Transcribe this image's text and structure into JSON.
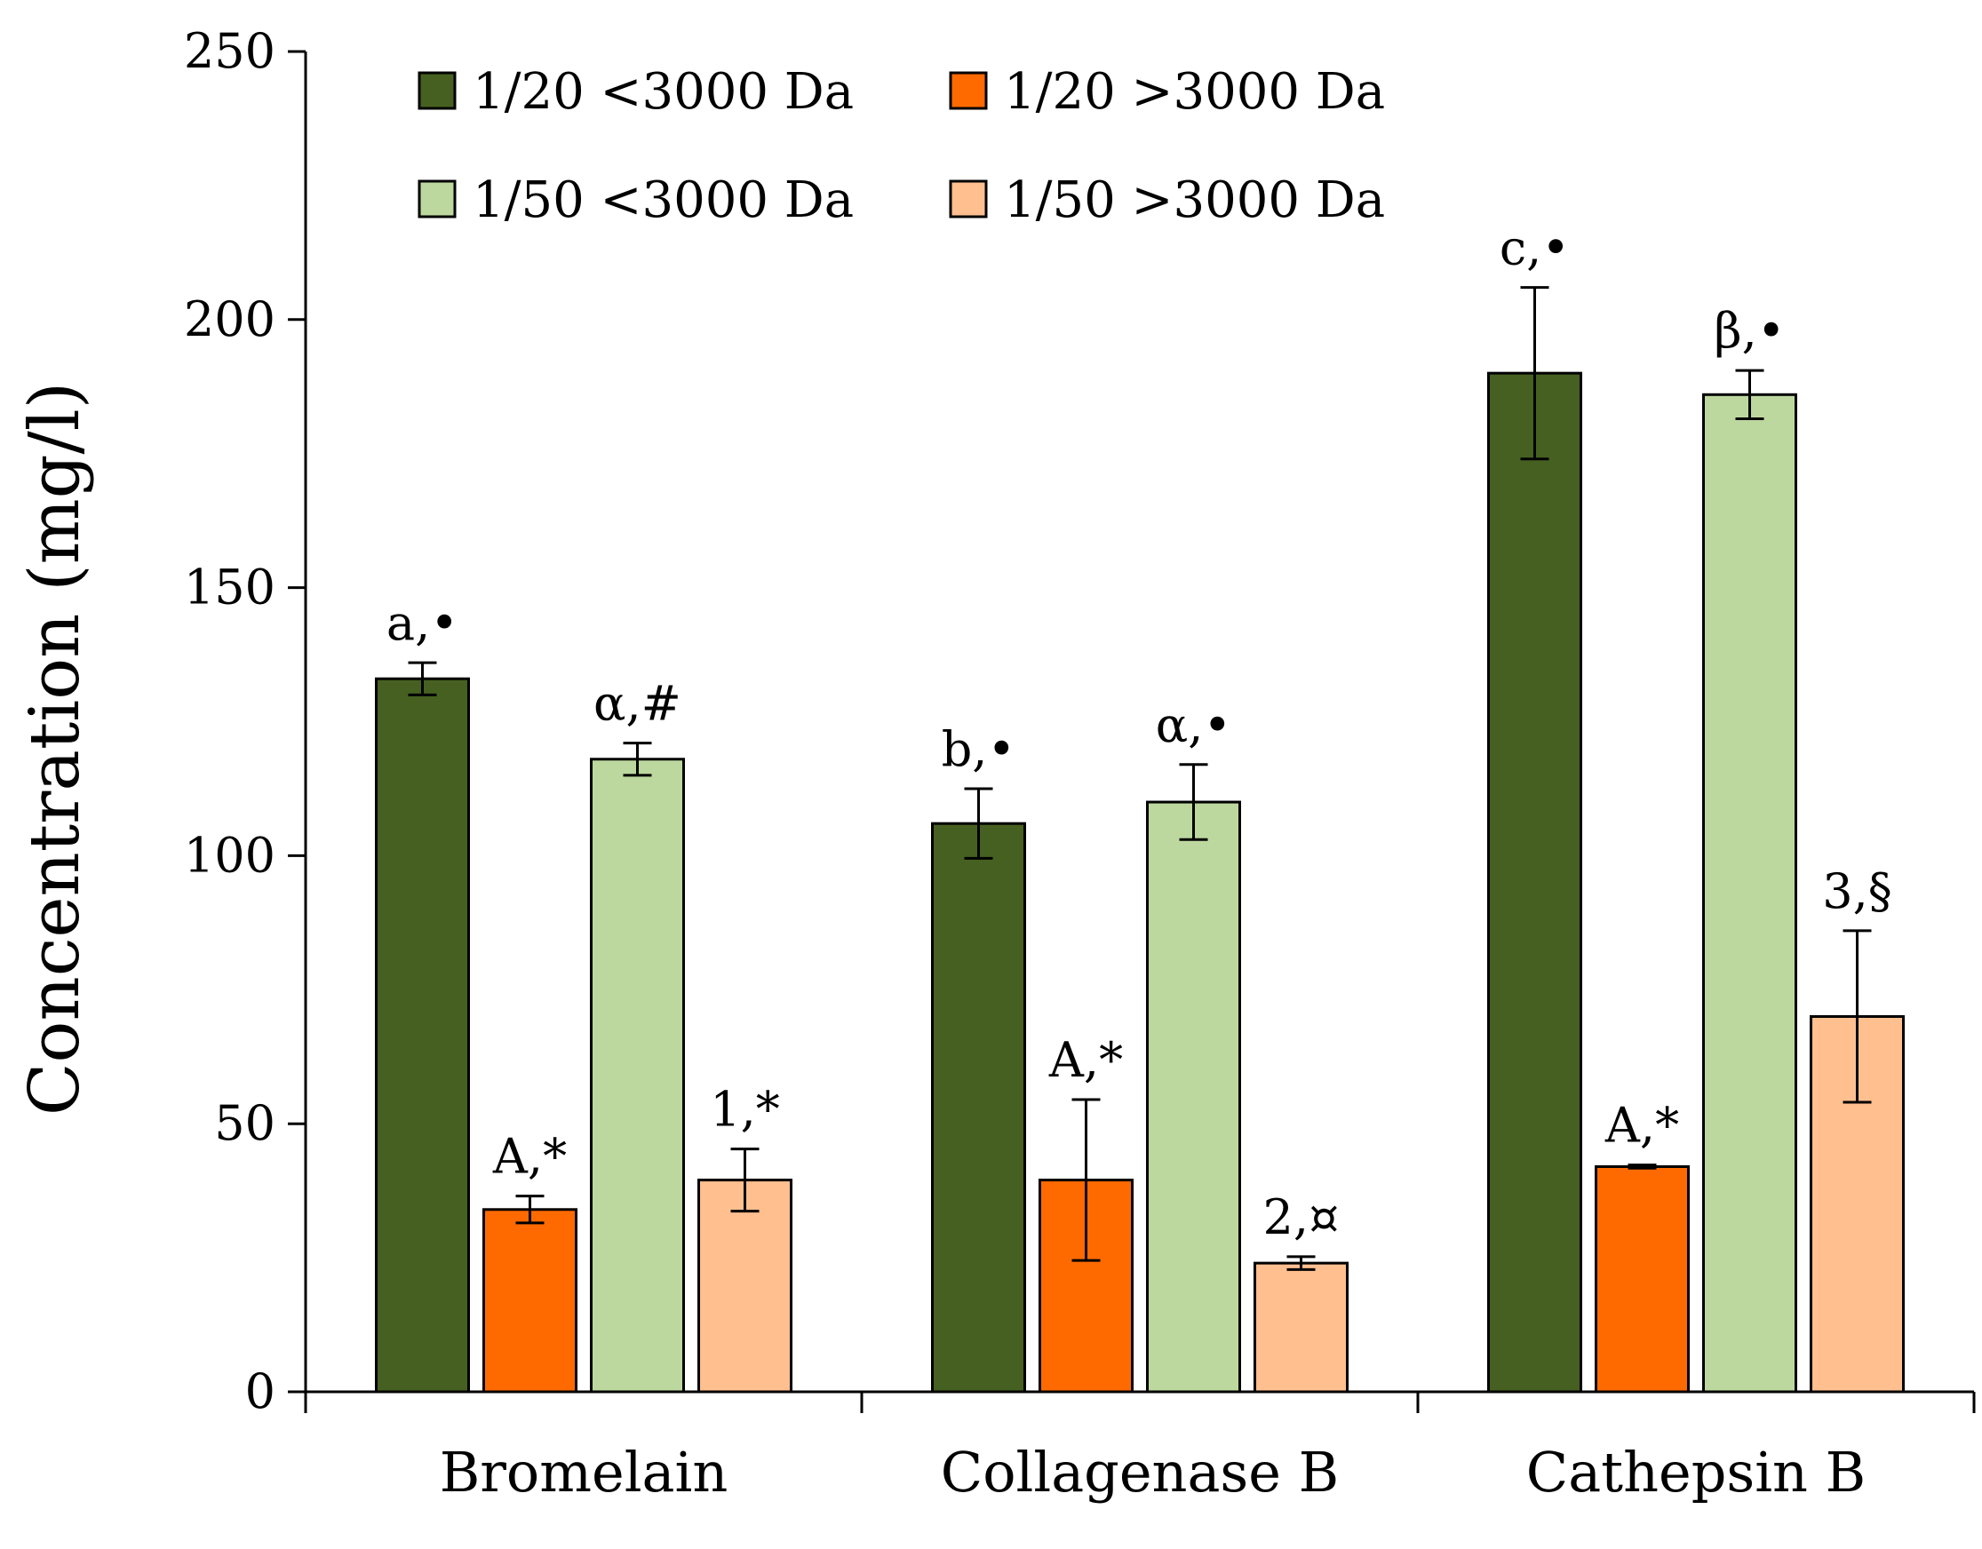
{
  "chart_data": {
    "type": "bar",
    "title": "",
    "xlabel": "",
    "ylabel": "Concentration (mg/l)",
    "ylim": [
      0,
      250
    ],
    "yticks": [
      "0",
      "50",
      "100",
      "150",
      "200",
      "250"
    ],
    "grid": false,
    "legend_position": "top",
    "categories": [
      "Bromelain",
      "Collagenase B",
      "Cathepsin B"
    ],
    "series": [
      {
        "name": "1/20 <3000 Da",
        "color": "#466021",
        "values": [
          133,
          106,
          190
        ],
        "errors": [
          3,
          6.5,
          16
        ],
        "annotations": [
          "a,•",
          "b,•",
          "c,•"
        ]
      },
      {
        "name": "1/20 >3000 Da",
        "color": "#FF6A00",
        "values": [
          34,
          39.5,
          42
        ],
        "errors": [
          2.5,
          15,
          0.3
        ],
        "annotations": [
          "A,*",
          "A,*",
          "A,*"
        ]
      },
      {
        "name": "1/50 <3000 Da",
        "color": "#BDD89E",
        "values": [
          118,
          110,
          186
        ],
        "errors": [
          3,
          7,
          4.5
        ],
        "annotations": [
          "α,#",
          "α,•",
          "β,•"
        ]
      },
      {
        "name": "1/50 >3000 Da",
        "color": "#FFBF8F",
        "values": [
          39.5,
          24,
          70
        ],
        "errors": [
          5.8,
          1.2,
          16
        ],
        "annotations": [
          "1,*",
          "2,¤",
          "3,§"
        ]
      }
    ]
  }
}
